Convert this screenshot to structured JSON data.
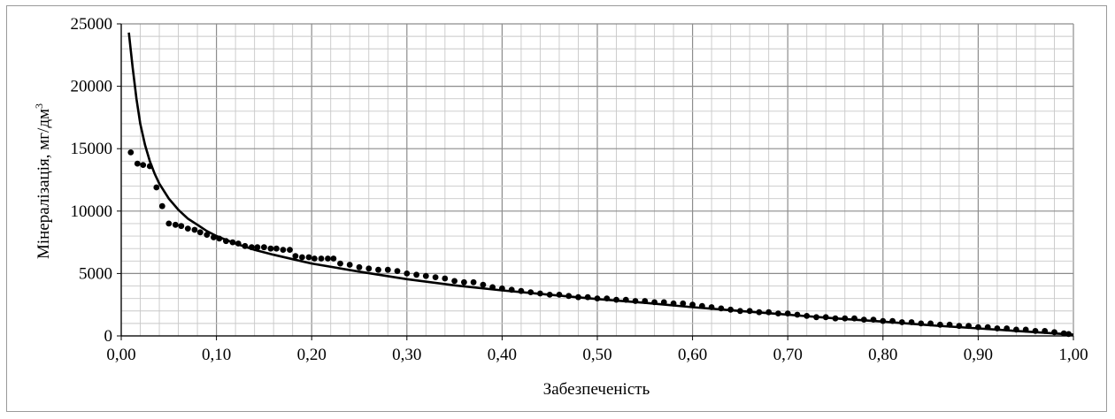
{
  "chart_data": {
    "type": "scatter",
    "title": "",
    "xlabel": "Забезпеченість",
    "ylabel": "Мінералізація, мг/дм",
    "ylabel_superscript": "3",
    "xlim": [
      0,
      1
    ],
    "ylim": [
      0,
      25000
    ],
    "x_ticks": [
      "0,00",
      "0,10",
      "0,20",
      "0,30",
      "0,40",
      "0,50",
      "0,60",
      "0,70",
      "0,80",
      "0,90",
      "1,00"
    ],
    "y_ticks": [
      "0",
      "5000",
      "10000",
      "15000",
      "20000",
      "25000"
    ],
    "grid": true,
    "legend": "none",
    "series": [
      {
        "kind": "points",
        "x": [
          0.01,
          0.017,
          0.023,
          0.03,
          0.037,
          0.043,
          0.05,
          0.057,
          0.063,
          0.07,
          0.077,
          0.083,
          0.09,
          0.097,
          0.103,
          0.11,
          0.117,
          0.123,
          0.13,
          0.137,
          0.143,
          0.15,
          0.157,
          0.163,
          0.17,
          0.177,
          0.183,
          0.19,
          0.197,
          0.203,
          0.21,
          0.217,
          0.223,
          0.23,
          0.24,
          0.25,
          0.26,
          0.27,
          0.28,
          0.29,
          0.3,
          0.31,
          0.32,
          0.33,
          0.34,
          0.35,
          0.36,
          0.37,
          0.38,
          0.39,
          0.4,
          0.41,
          0.42,
          0.43,
          0.44,
          0.45,
          0.46,
          0.47,
          0.48,
          0.49,
          0.5,
          0.51,
          0.52,
          0.53,
          0.54,
          0.55,
          0.56,
          0.57,
          0.58,
          0.59,
          0.6,
          0.61,
          0.62,
          0.63,
          0.64,
          0.65,
          0.66,
          0.67,
          0.68,
          0.69,
          0.7,
          0.71,
          0.72,
          0.73,
          0.74,
          0.75,
          0.76,
          0.77,
          0.78,
          0.79,
          0.8,
          0.81,
          0.82,
          0.83,
          0.84,
          0.85,
          0.86,
          0.87,
          0.88,
          0.89,
          0.9,
          0.91,
          0.92,
          0.93,
          0.94,
          0.95,
          0.96,
          0.97,
          0.98,
          0.99,
          0.995
        ],
        "y": [
          14700,
          13800,
          13700,
          13600,
          11900,
          10400,
          9000,
          8900,
          8800,
          8600,
          8500,
          8300,
          8100,
          7900,
          7800,
          7600,
          7500,
          7400,
          7200,
          7100,
          7100,
          7100,
          7000,
          7000,
          6900,
          6900,
          6400,
          6300,
          6300,
          6200,
          6200,
          6200,
          6200,
          5800,
          5700,
          5500,
          5400,
          5300,
          5300,
          5200,
          5000,
          4900,
          4800,
          4700,
          4600,
          4400,
          4300,
          4300,
          4100,
          3900,
          3800,
          3700,
          3600,
          3500,
          3400,
          3300,
          3300,
          3200,
          3100,
          3100,
          3000,
          3000,
          2900,
          2900,
          2800,
          2800,
          2700,
          2700,
          2600,
          2600,
          2500,
          2400,
          2300,
          2200,
          2100,
          2000,
          2000,
          1900,
          1900,
          1800,
          1800,
          1700,
          1600,
          1500,
          1500,
          1400,
          1400,
          1400,
          1300,
          1300,
          1200,
          1200,
          1100,
          1100,
          1000,
          1000,
          900,
          900,
          800,
          800,
          700,
          700,
          600,
          600,
          500,
          500,
          400,
          400,
          300,
          200,
          150
        ]
      },
      {
        "kind": "fit-line",
        "x": [
          0.008,
          0.012,
          0.016,
          0.02,
          0.025,
          0.03,
          0.035,
          0.04,
          0.05,
          0.06,
          0.07,
          0.08,
          0.09,
          0.1,
          0.12,
          0.14,
          0.16,
          0.18,
          0.2,
          0.25,
          0.3,
          0.35,
          0.4,
          0.45,
          0.5,
          0.55,
          0.6,
          0.65,
          0.7,
          0.75,
          0.8,
          0.85,
          0.9,
          0.95,
          1.0
        ],
        "y": [
          24300,
          21500,
          19000,
          17000,
          15300,
          14000,
          13000,
          12200,
          11000,
          10100,
          9400,
          8900,
          8400,
          8000,
          7400,
          6900,
          6500,
          6150,
          5800,
          5150,
          4550,
          4050,
          3650,
          3300,
          2950,
          2650,
          2300,
          2000,
          1700,
          1400,
          1150,
          850,
          600,
          350,
          100
        ]
      }
    ]
  }
}
